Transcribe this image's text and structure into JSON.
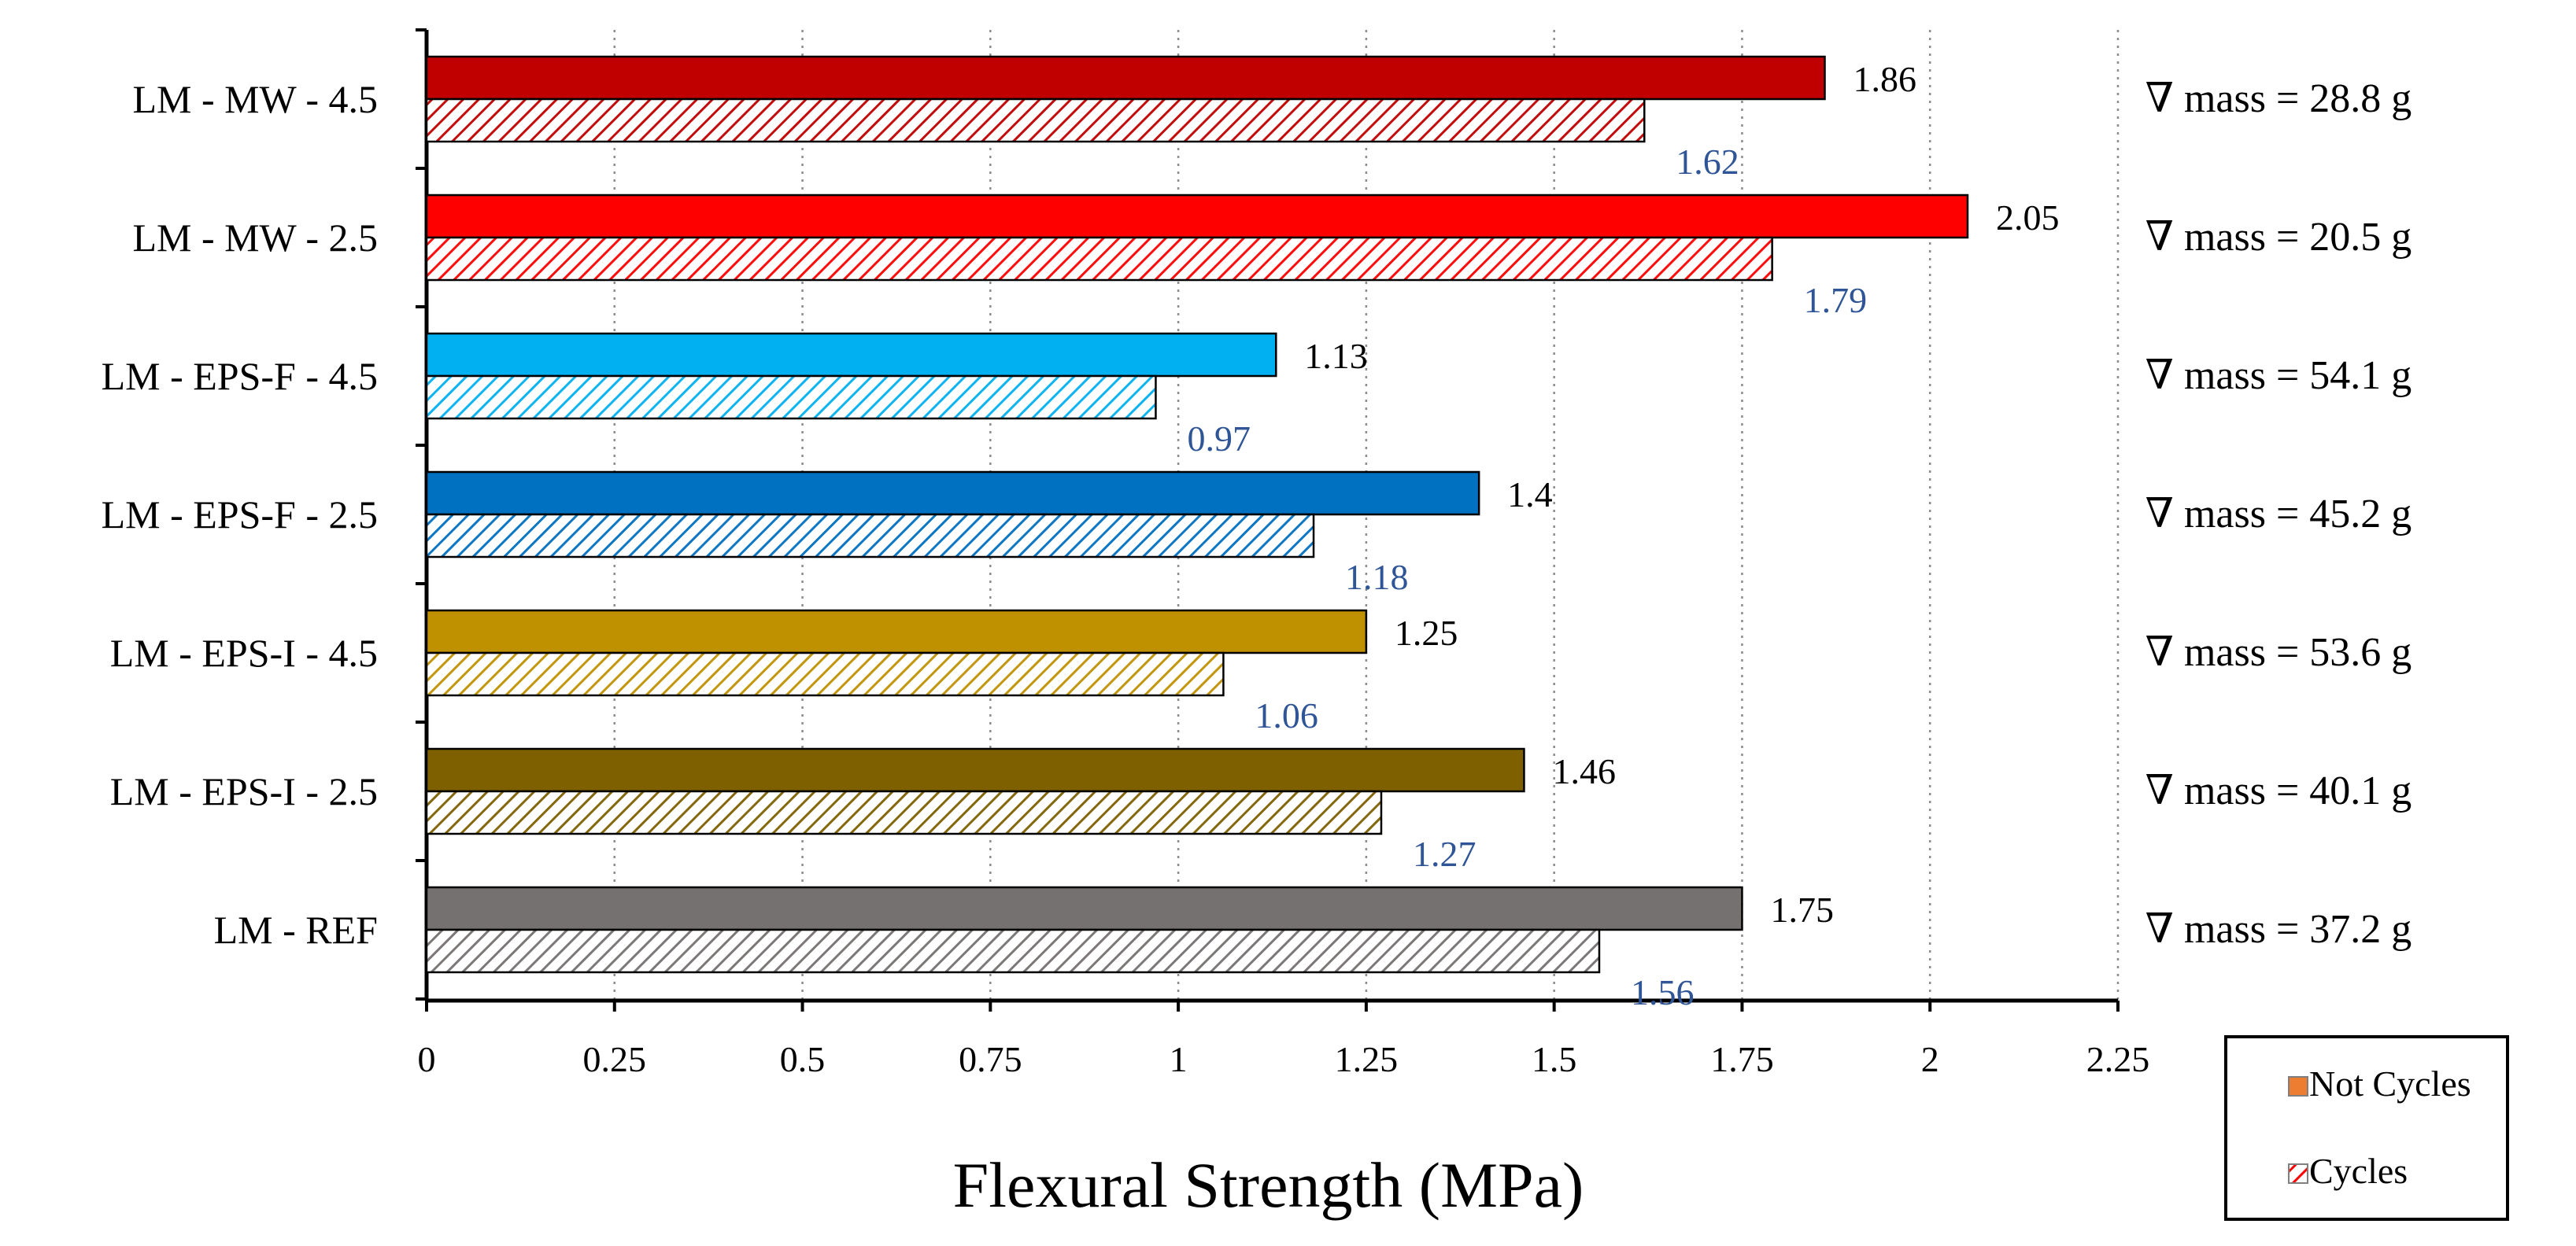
{
  "chart_data": {
    "type": "bar",
    "orientation": "horizontal",
    "title": "",
    "xlabel": "Flexural Strength (MPa)",
    "ylabel": "",
    "xlim": [
      0,
      2.25
    ],
    "x_ticks": [
      "0",
      "0.25",
      "0.5",
      "0.75",
      "1",
      "1.25",
      "1.5",
      "1.75",
      "2",
      "2.25"
    ],
    "grid": "vertical dotted",
    "categories": [
      "LM - MW - 4.5",
      "LM - MW - 2.5",
      "LM - EPS-F - 4.5",
      "LM - EPS-F - 2.5",
      "LM - EPS-I - 4.5",
      "LM - EPS-I - 2.5",
      "LM - REF"
    ],
    "category_colors": [
      "#C00000",
      "#FF0000",
      "#00B0F0",
      "#0070C0",
      "#BF9000",
      "#7F6000",
      "#767171"
    ],
    "series": [
      {
        "name": "Not Cycles",
        "style": "solid",
        "values": [
          1.86,
          2.05,
          1.13,
          1.4,
          1.25,
          1.46,
          1.75
        ],
        "labels": [
          "1.86",
          "2.05",
          "1.13",
          "1.4",
          "1.25",
          "1.46",
          "1.75"
        ],
        "label_color": "#000000"
      },
      {
        "name": "Cycles",
        "style": "hatched",
        "values": [
          1.62,
          1.79,
          0.97,
          1.18,
          1.06,
          1.27,
          1.56
        ],
        "labels": [
          "1.62",
          "1.79",
          "0.97",
          "1.18",
          "1.06",
          "1.27",
          "1.56"
        ],
        "label_color": "#2F5597"
      }
    ],
    "annotations": [
      "∇ mass = 28.8 g",
      "∇ mass = 20.5 g",
      "∇ mass = 54.1 g",
      "∇ mass = 45.2 g",
      "∇ mass = 53.6 g",
      "∇ mass = 40.1 g",
      "∇ mass = 37.2 g"
    ],
    "legend": {
      "position": "bottom-right",
      "entries": [
        {
          "label": "Not Cycles",
          "swatch": "solid",
          "color": "#ED7D31"
        },
        {
          "label": "Cycles",
          "swatch": "hatched",
          "color": "#FF0000"
        }
      ]
    }
  }
}
